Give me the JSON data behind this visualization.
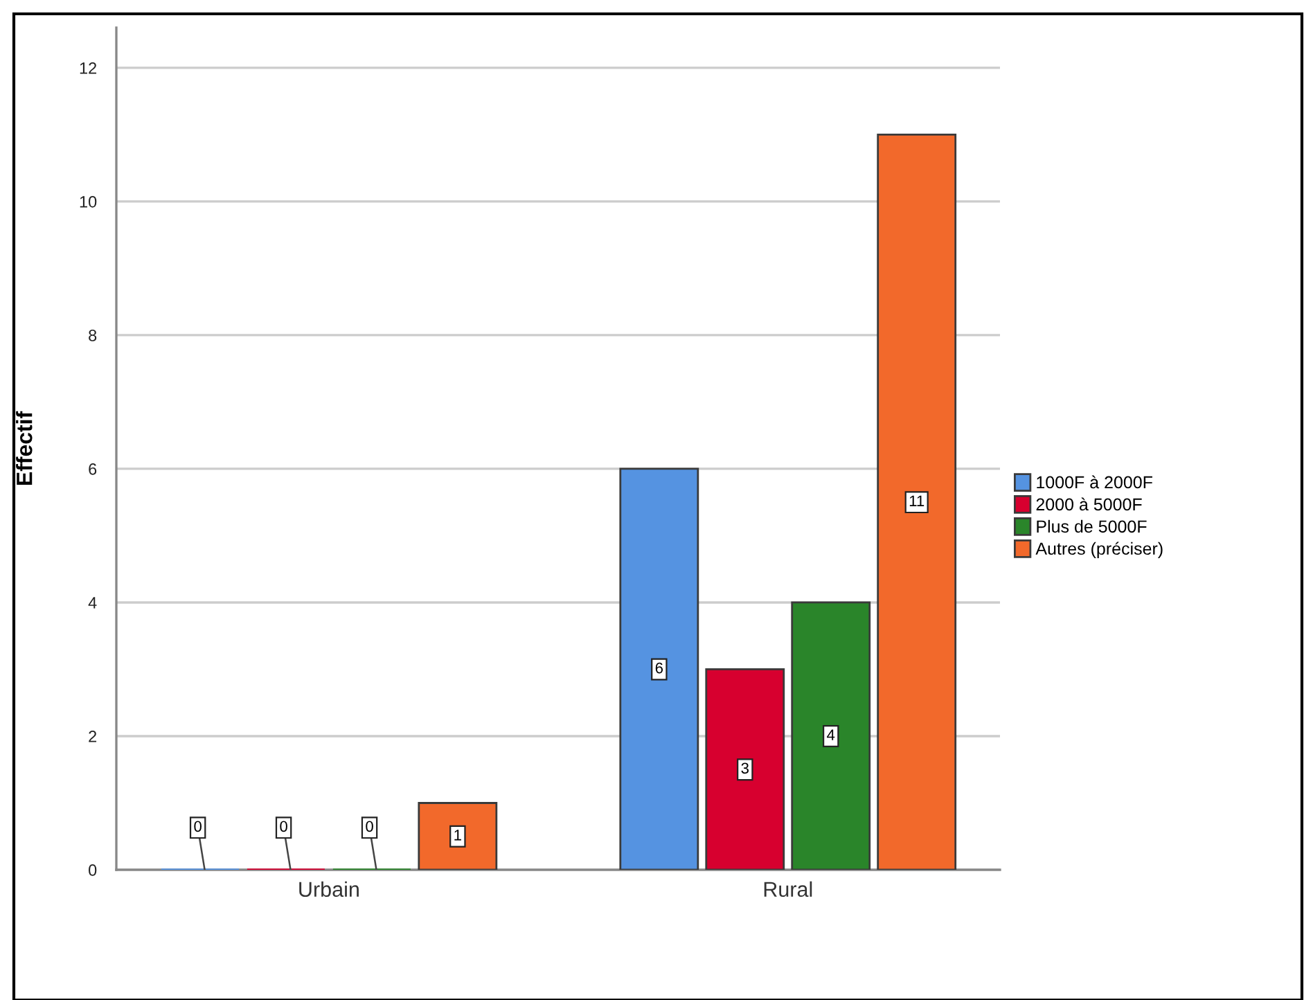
{
  "chart_data": {
    "type": "bar",
    "ylabel": "Effectif",
    "categories": [
      "Urbain",
      "Rural"
    ],
    "series": [
      {
        "name": "1000F à 2000F",
        "color": "#5593e1",
        "values": [
          0,
          6
        ]
      },
      {
        "name": "2000 à 5000F",
        "color": "#d7002f",
        "values": [
          0,
          3
        ]
      },
      {
        "name": "Plus de 5000F",
        "color": "#2a852a",
        "values": [
          0,
          4
        ]
      },
      {
        "name": "Autres (préciser)",
        "color": "#f2692b",
        "values": [
          1,
          11
        ]
      }
    ],
    "ylim": [
      0,
      12.6
    ],
    "yticks": [
      0,
      2,
      4,
      6,
      8,
      10,
      12
    ],
    "grid": "y",
    "legend": "right",
    "data_labels": true
  }
}
